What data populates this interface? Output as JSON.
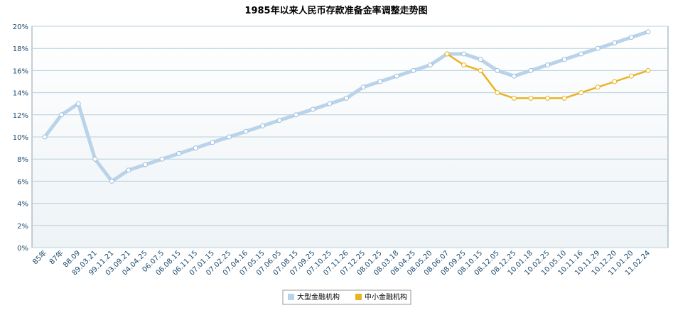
{
  "chart_data": {
    "type": "line",
    "title": "1985年以来人民币存款准备金率调整走势图",
    "categories": [
      "85年",
      "87年",
      "88.09",
      "89.03.21",
      "99.11.21",
      "03.09.21",
      "04.04.25",
      "06.07.5",
      "06.08.15",
      "06.11.15",
      "07.01.15",
      "07.02.25",
      "07.04.16",
      "07.05.15",
      "07.06.05",
      "07.08.15",
      "07.09.25",
      "07.10.25",
      "07.11.26",
      "07.12.25",
      "08.01.25",
      "08.03.18",
      "08.04.25",
      "08.05.20",
      "08.06.07",
      "08.09.25",
      "08.10.15",
      "08.12.05",
      "08.12.25",
      "10.01.18",
      "10.02.25",
      "10.05.10",
      "10.11.16",
      "10.11.29",
      "10.12.20",
      "11.01.20",
      "11.02.24"
    ],
    "series": [
      {
        "name": "大型金融机构",
        "color": "#b9d3ea",
        "values": [
          10,
          12,
          13,
          8,
          6,
          7,
          7.5,
          8,
          8.5,
          9,
          9.5,
          10,
          10.5,
          11,
          11.5,
          12,
          12.5,
          13,
          13.5,
          14.5,
          15,
          15.5,
          16,
          16.5,
          17.5,
          17.5,
          17,
          16,
          15.5,
          16,
          16.5,
          17,
          17.5,
          18,
          18.5,
          19,
          19.5
        ]
      },
      {
        "name": "中小金融机构",
        "color": "#e9b321",
        "values": [
          null,
          null,
          null,
          null,
          null,
          null,
          null,
          null,
          null,
          null,
          null,
          null,
          null,
          null,
          null,
          null,
          null,
          null,
          null,
          null,
          null,
          null,
          null,
          null,
          17.5,
          16.5,
          16,
          14,
          13.5,
          13.5,
          13.5,
          13.5,
          14,
          14.5,
          15,
          15.5,
          16
        ]
      }
    ],
    "ylim": [
      0,
      20
    ],
    "yticks": [
      {
        "value": 0,
        "label": "0%"
      },
      {
        "value": 2,
        "label": "2%"
      },
      {
        "value": 4,
        "label": "4%"
      },
      {
        "value": 6,
        "label": "6%"
      },
      {
        "value": 8,
        "label": "8%"
      },
      {
        "value": 10,
        "label": "10%"
      },
      {
        "value": 12,
        "label": "12%"
      },
      {
        "value": 14,
        "label": "14%"
      },
      {
        "value": 16,
        "label": "16%"
      },
      {
        "value": 18,
        "label": "18%"
      },
      {
        "value": 20,
        "label": "20%"
      }
    ],
    "grid": true
  }
}
